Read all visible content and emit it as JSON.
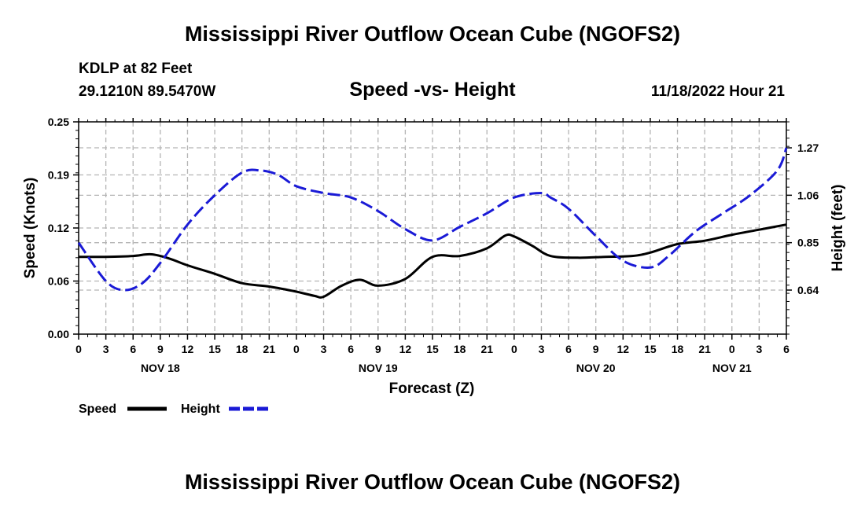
{
  "header": {
    "title": "Mississippi River Outflow Ocean Cube (NGOFS2)",
    "station": "KDLP at 82 Feet",
    "coords": "29.1210N  89.5470W",
    "subtitle": "Speed -vs- Height",
    "datetime": "11/18/2022 Hour 21"
  },
  "footer": {
    "title": "Mississippi River Outflow Ocean Cube (NGOFS2)"
  },
  "chart_data": {
    "type": "line",
    "xlabel": "Forecast (Z)",
    "ylabel_left": "Speed (Knots)",
    "ylabel_right": "Height (feet)",
    "x_range_hours": [
      0,
      78
    ],
    "x_tick_step_hours": 3,
    "x_tick_labels": [
      "0",
      "3",
      "6",
      "9",
      "12",
      "15",
      "18",
      "21",
      "0",
      "3",
      "6",
      "9",
      "12",
      "15",
      "18",
      "21",
      "0",
      "3",
      "6",
      "9",
      "12",
      "15",
      "18",
      "21",
      "0",
      "3",
      "6"
    ],
    "day_labels": [
      {
        "label": "NOV 18",
        "hour": 9
      },
      {
        "label": "NOV 19",
        "hour": 33
      },
      {
        "label": "NOV 20",
        "hour": 57
      },
      {
        "label": "NOV 21",
        "hour": 72
      }
    ],
    "y_left": {
      "range": [
        0,
        0.25
      ],
      "ticks": [
        "0.00",
        "0.06",
        "0.12",
        "0.19",
        "0.25"
      ]
    },
    "y_right": {
      "range": [
        0.445,
        1.385
      ],
      "ticks": [
        "0.64",
        "0.85",
        "1.06",
        "1.27"
      ]
    },
    "grid": true,
    "legend_placement": "bottom-left",
    "series": [
      {
        "name": "Speed",
        "axis": "left",
        "color": "#000000",
        "style": "solid",
        "hours": [
          0,
          3,
          6,
          8,
          10,
          12,
          15,
          18,
          21,
          24,
          26,
          27,
          29,
          31,
          33,
          36,
          39,
          42,
          45,
          47,
          48,
          50,
          52,
          55,
          58,
          61,
          63,
          66,
          69,
          72,
          75,
          78
        ],
        "values": [
          0.091,
          0.091,
          0.092,
          0.094,
          0.089,
          0.081,
          0.071,
          0.06,
          0.056,
          0.05,
          0.045,
          0.044,
          0.057,
          0.064,
          0.057,
          0.065,
          0.091,
          0.092,
          0.101,
          0.116,
          0.115,
          0.104,
          0.092,
          0.09,
          0.091,
          0.092,
          0.096,
          0.106,
          0.11,
          0.117,
          0.123,
          0.129
        ]
      },
      {
        "name": "Height",
        "axis": "right",
        "color": "#1a1ad6",
        "style": "dashed",
        "hours": [
          0,
          3,
          5,
          7,
          9,
          12,
          15,
          18,
          20,
          22,
          24,
          27,
          30,
          33,
          36,
          39,
          42,
          45,
          48,
          51,
          52,
          54,
          57,
          60,
          63,
          65,
          68,
          71,
          74,
          77,
          78
        ],
        "values": [
          0.85,
          0.68,
          0.64,
          0.67,
          0.76,
          0.93,
          1.06,
          1.16,
          1.17,
          1.15,
          1.1,
          1.07,
          1.05,
          0.99,
          0.91,
          0.86,
          0.92,
          0.98,
          1.05,
          1.07,
          1.05,
          1.0,
          0.88,
          0.77,
          0.74,
          0.79,
          0.9,
          0.98,
          1.06,
          1.17,
          1.27
        ]
      }
    ]
  }
}
